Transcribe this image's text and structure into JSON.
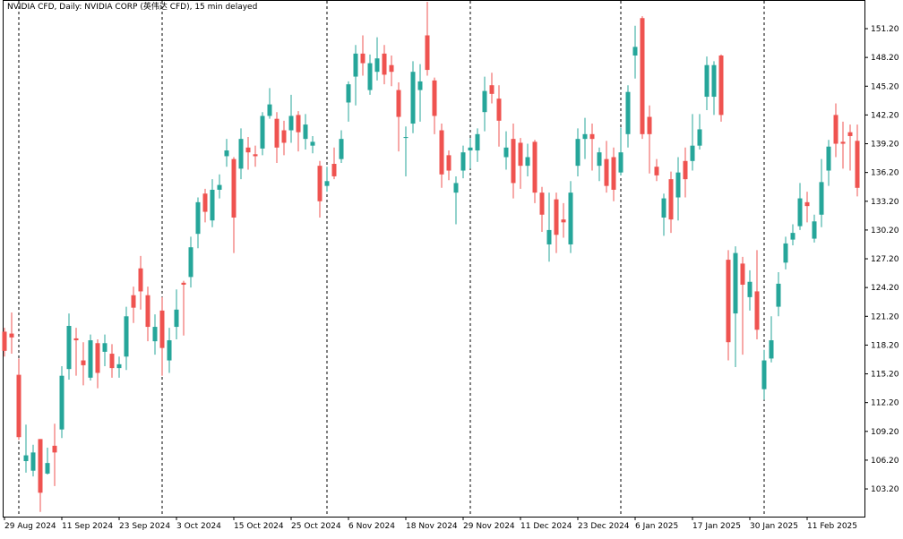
{
  "chart_data": {
    "type": "candlestick",
    "title": "NVIDIA CFD, Daily:  NVIDIA CORP (英伟达 CFD), 15 min delayed",
    "categories": [
      "29 Aug 2024",
      null,
      null,
      null,
      null,
      null,
      null,
      null,
      "11 Sep 2024",
      null,
      null,
      null,
      null,
      null,
      null,
      null,
      "23 Sep 2024",
      null,
      null,
      null,
      null,
      null,
      null,
      null,
      "3 Oct 2024",
      null,
      null,
      null,
      null,
      null,
      null,
      null,
      "15 Oct 2024",
      null,
      null,
      null,
      null,
      null,
      null,
      null,
      "25 Oct 2024",
      null,
      null,
      null,
      null,
      null,
      null,
      null,
      "6 Nov 2024",
      null,
      null,
      null,
      null,
      null,
      null,
      null,
      "18 Nov 2024",
      null,
      null,
      null,
      null,
      null,
      null,
      null,
      "29 Nov 2024",
      null,
      null,
      null,
      null,
      null,
      null,
      null,
      "11 Dec 2024",
      null,
      null,
      null,
      null,
      null,
      null,
      null,
      "23 Dec 2024",
      null,
      null,
      null,
      null,
      null,
      null,
      null,
      "6 Jan 2025",
      null,
      null,
      null,
      null,
      null,
      null,
      null,
      "17 Jan 2025",
      null,
      null,
      null,
      null,
      null,
      null,
      null,
      "30 Jan 2025",
      null,
      null,
      null,
      null,
      null,
      null,
      null,
      "11 Feb 2025",
      null,
      null,
      null,
      null,
      null,
      null,
      null
    ],
    "open": [
      119.6,
      119.4,
      115.1,
      106.1,
      105.1,
      108.4,
      104.8,
      107.7,
      109.4,
      115.7,
      118.9,
      116.6,
      114.8,
      118.4,
      117.5,
      117.3,
      115.8,
      117,
      123.4,
      126.2,
      123.4,
      118.6,
      121.8,
      116.6,
      120.1,
      124.7,
      125.3,
      129.8,
      134,
      131.2,
      134.4,
      137.9,
      137.6,
      136.6,
      138.8,
      138.1,
      138.7,
      142.1,
      141.8,
      140.6,
      140.6,
      142.2,
      139.7,
      139,
      136.9,
      134.8,
      137.1,
      137.6,
      143.5,
      146.2,
      148.6,
      144.8,
      146.7,
      148.6,
      147.4,
      144.8,
      139.8,
      141.3,
      144.8,
      150.5,
      145.8,
      140.6,
      138,
      134.1,
      136.4,
      138.5,
      138.5,
      142.5,
      145.3,
      143.9,
      137.8,
      139.7,
      139.3,
      136.9,
      139.4,
      134.1,
      128.7,
      133.4,
      131.3,
      128.7,
      136.9,
      139.7,
      140.2,
      136.9,
      137.6,
      137.8,
      136.2,
      140.2,
      148.4,
      152.3,
      142,
      136.8,
      131.5,
      135.5,
      133.6,
      137.4,
      137.4,
      139,
      144.1,
      144.1,
      148.4,
      127.1,
      121.5,
      126.7,
      123.2,
      123.8,
      113.6,
      116.8,
      122.2,
      126.8,
      129.2,
      130.6,
      133.1,
      129.3,
      131.8,
      136.4,
      142.2,
      139.4,
      140.4,
      139.5
    ],
    "high": [
      120,
      121.6,
      116.8,
      109.9,
      107.8,
      108.4,
      107.5,
      110,
      116,
      121.5,
      120,
      118.5,
      119.3,
      118.8,
      119.3,
      118.3,
      117,
      122.2,
      124.3,
      127.5,
      124.3,
      121.4,
      123.2,
      120,
      124,
      124.9,
      129.5,
      133.6,
      134.5,
      135.5,
      136,
      139.7,
      137.8,
      140.8,
      139.9,
      139,
      142.5,
      145,
      142.5,
      141.6,
      144.3,
      142.6,
      142.3,
      140,
      137.4,
      136.8,
      138.8,
      140.6,
      145.7,
      149.5,
      150.5,
      148.5,
      150.3,
      149.5,
      148.4,
      145.6,
      141,
      147.8,
      147.5,
      154,
      146.1,
      141.3,
      138.5,
      135.8,
      139,
      139.8,
      140.8,
      146.2,
      146.6,
      145.3,
      140.5,
      141.3,
      139.8,
      139.2,
      139.6,
      134.7,
      134.1,
      134.1,
      133,
      135.3,
      140.8,
      141.9,
      141.3,
      138.8,
      139.5,
      138.8,
      140.9,
      145.3,
      151.5,
      152.5,
      143.2,
      137.6,
      134,
      136.3,
      137.8,
      138.8,
      142.3,
      142.3,
      148.3,
      147.8,
      148.5,
      128.1,
      128.5,
      127.4,
      126,
      128.1,
      117.7,
      121.2,
      125.8,
      129.5,
      130.8,
      135.1,
      134.2,
      131.8,
      137.6,
      139.6,
      143.4,
      141.5,
      141.2,
      141.2
    ],
    "low": [
      117,
      117.3,
      108.3,
      104.9,
      104.5,
      100.8,
      104.7,
      103.5,
      108.5,
      114.6,
      115,
      114,
      114.5,
      113.7,
      116,
      114.8,
      114.8,
      115.6,
      120.5,
      121.9,
      118.6,
      117.2,
      115,
      115.3,
      118.8,
      119.2,
      124.2,
      128.3,
      131,
      130.5,
      133.5,
      136.8,
      127.8,
      135.5,
      136.5,
      136.8,
      138,
      141.8,
      137.2,
      138,
      139.3,
      138.4,
      138.6,
      138.2,
      131.5,
      134.2,
      135.5,
      137.2,
      141.5,
      143.2,
      146.3,
      144.3,
      145.8,
      145.4,
      145.2,
      138.4,
      135.8,
      140.3,
      141.5,
      146.3,
      140.2,
      134.6,
      135.4,
      130.8,
      135.6,
      136.6,
      137.3,
      140.5,
      143.4,
      138.9,
      136.5,
      133.5,
      134.5,
      135.8,
      133,
      130,
      126.9,
      127.8,
      129.4,
      127.8,
      135.8,
      137.6,
      136.4,
      135.3,
      134.1,
      133.2,
      135.9,
      138.8,
      146,
      139.7,
      136.1,
      135.3,
      129.6,
      129.9,
      131.2,
      133.6,
      136.4,
      138.6,
      142.7,
      142.2,
      141.5,
      116.6,
      115.9,
      117.2,
      121.8,
      118.8,
      112.5,
      116.4,
      121.2,
      126.1,
      128.6,
      130.2,
      131,
      128.9,
      130.5,
      134.8,
      137.8,
      136.6,
      136.4,
      133.7
    ],
    "close": [
      117.6,
      119,
      108.6,
      106.7,
      107,
      102.8,
      105.9,
      107,
      115,
      120.2,
      118.7,
      116.1,
      118.7,
      115.3,
      118.4,
      115.8,
      116.2,
      121.2,
      122.1,
      123.8,
      120.1,
      120.1,
      117.9,
      118.7,
      121.9,
      124.5,
      128.4,
      133.1,
      132.1,
      134.4,
      134.9,
      138.5,
      131.5,
      139.7,
      138.3,
      137.9,
      142.1,
      143.3,
      138.8,
      139.3,
      142.1,
      140.4,
      141.2,
      139.4,
      133.2,
      135.3,
      135.8,
      139.7,
      145.4,
      148.6,
      147.6,
      147.6,
      148.1,
      146.4,
      146.7,
      142,
      139.9,
      146.7,
      145.7,
      146.9,
      142.1,
      136,
      136.4,
      135.1,
      138.3,
      138.8,
      140.2,
      144.7,
      144.4,
      141.6,
      138.8,
      135.1,
      136.9,
      137.8,
      134.1,
      131.8,
      130.2,
      129.7,
      131,
      134.1,
      139.7,
      140.2,
      139.7,
      138.3,
      134.8,
      134.4,
      138.3,
      144.6,
      149.3,
      140.2,
      140.2,
      135.9,
      133.5,
      131.3,
      136.2,
      135.5,
      139,
      140.7,
      147.4,
      147.4,
      142.2,
      118.5,
      127.8,
      124.5,
      124.8,
      119.8,
      116.6,
      118.7,
      124.6,
      128.8,
      129.9,
      133.5,
      132.7,
      131.1,
      135.2,
      138.9,
      139.2,
      139.2,
      140,
      134.6
    ],
    "up_color": "#26a69a",
    "down_color": "#ef5350",
    "ylim": [
      100.31,
      154.19
    ],
    "yticks": [
      {
        "value": 103.2,
        "label": "103.20"
      },
      {
        "value": 106.2,
        "label": "106.20"
      },
      {
        "value": 109.2,
        "label": "109.20"
      },
      {
        "value": 112.2,
        "label": "112.20"
      },
      {
        "value": 115.2,
        "label": "115.20"
      },
      {
        "value": 118.2,
        "label": "118.20"
      },
      {
        "value": 121.2,
        "label": "121.20"
      },
      {
        "value": 124.2,
        "label": "124.20"
      },
      {
        "value": 127.2,
        "label": "127.20"
      },
      {
        "value": 130.2,
        "label": "130.20"
      },
      {
        "value": 133.2,
        "label": "133.20"
      },
      {
        "value": 136.2,
        "label": "136.20"
      },
      {
        "value": 139.2,
        "label": "139.20"
      },
      {
        "value": 142.2,
        "label": "142.20"
      },
      {
        "value": 145.2,
        "label": "145.20"
      },
      {
        "value": 148.2,
        "label": "148.20"
      },
      {
        "value": 151.2,
        "label": "151.20"
      }
    ],
    "grid": false
  }
}
